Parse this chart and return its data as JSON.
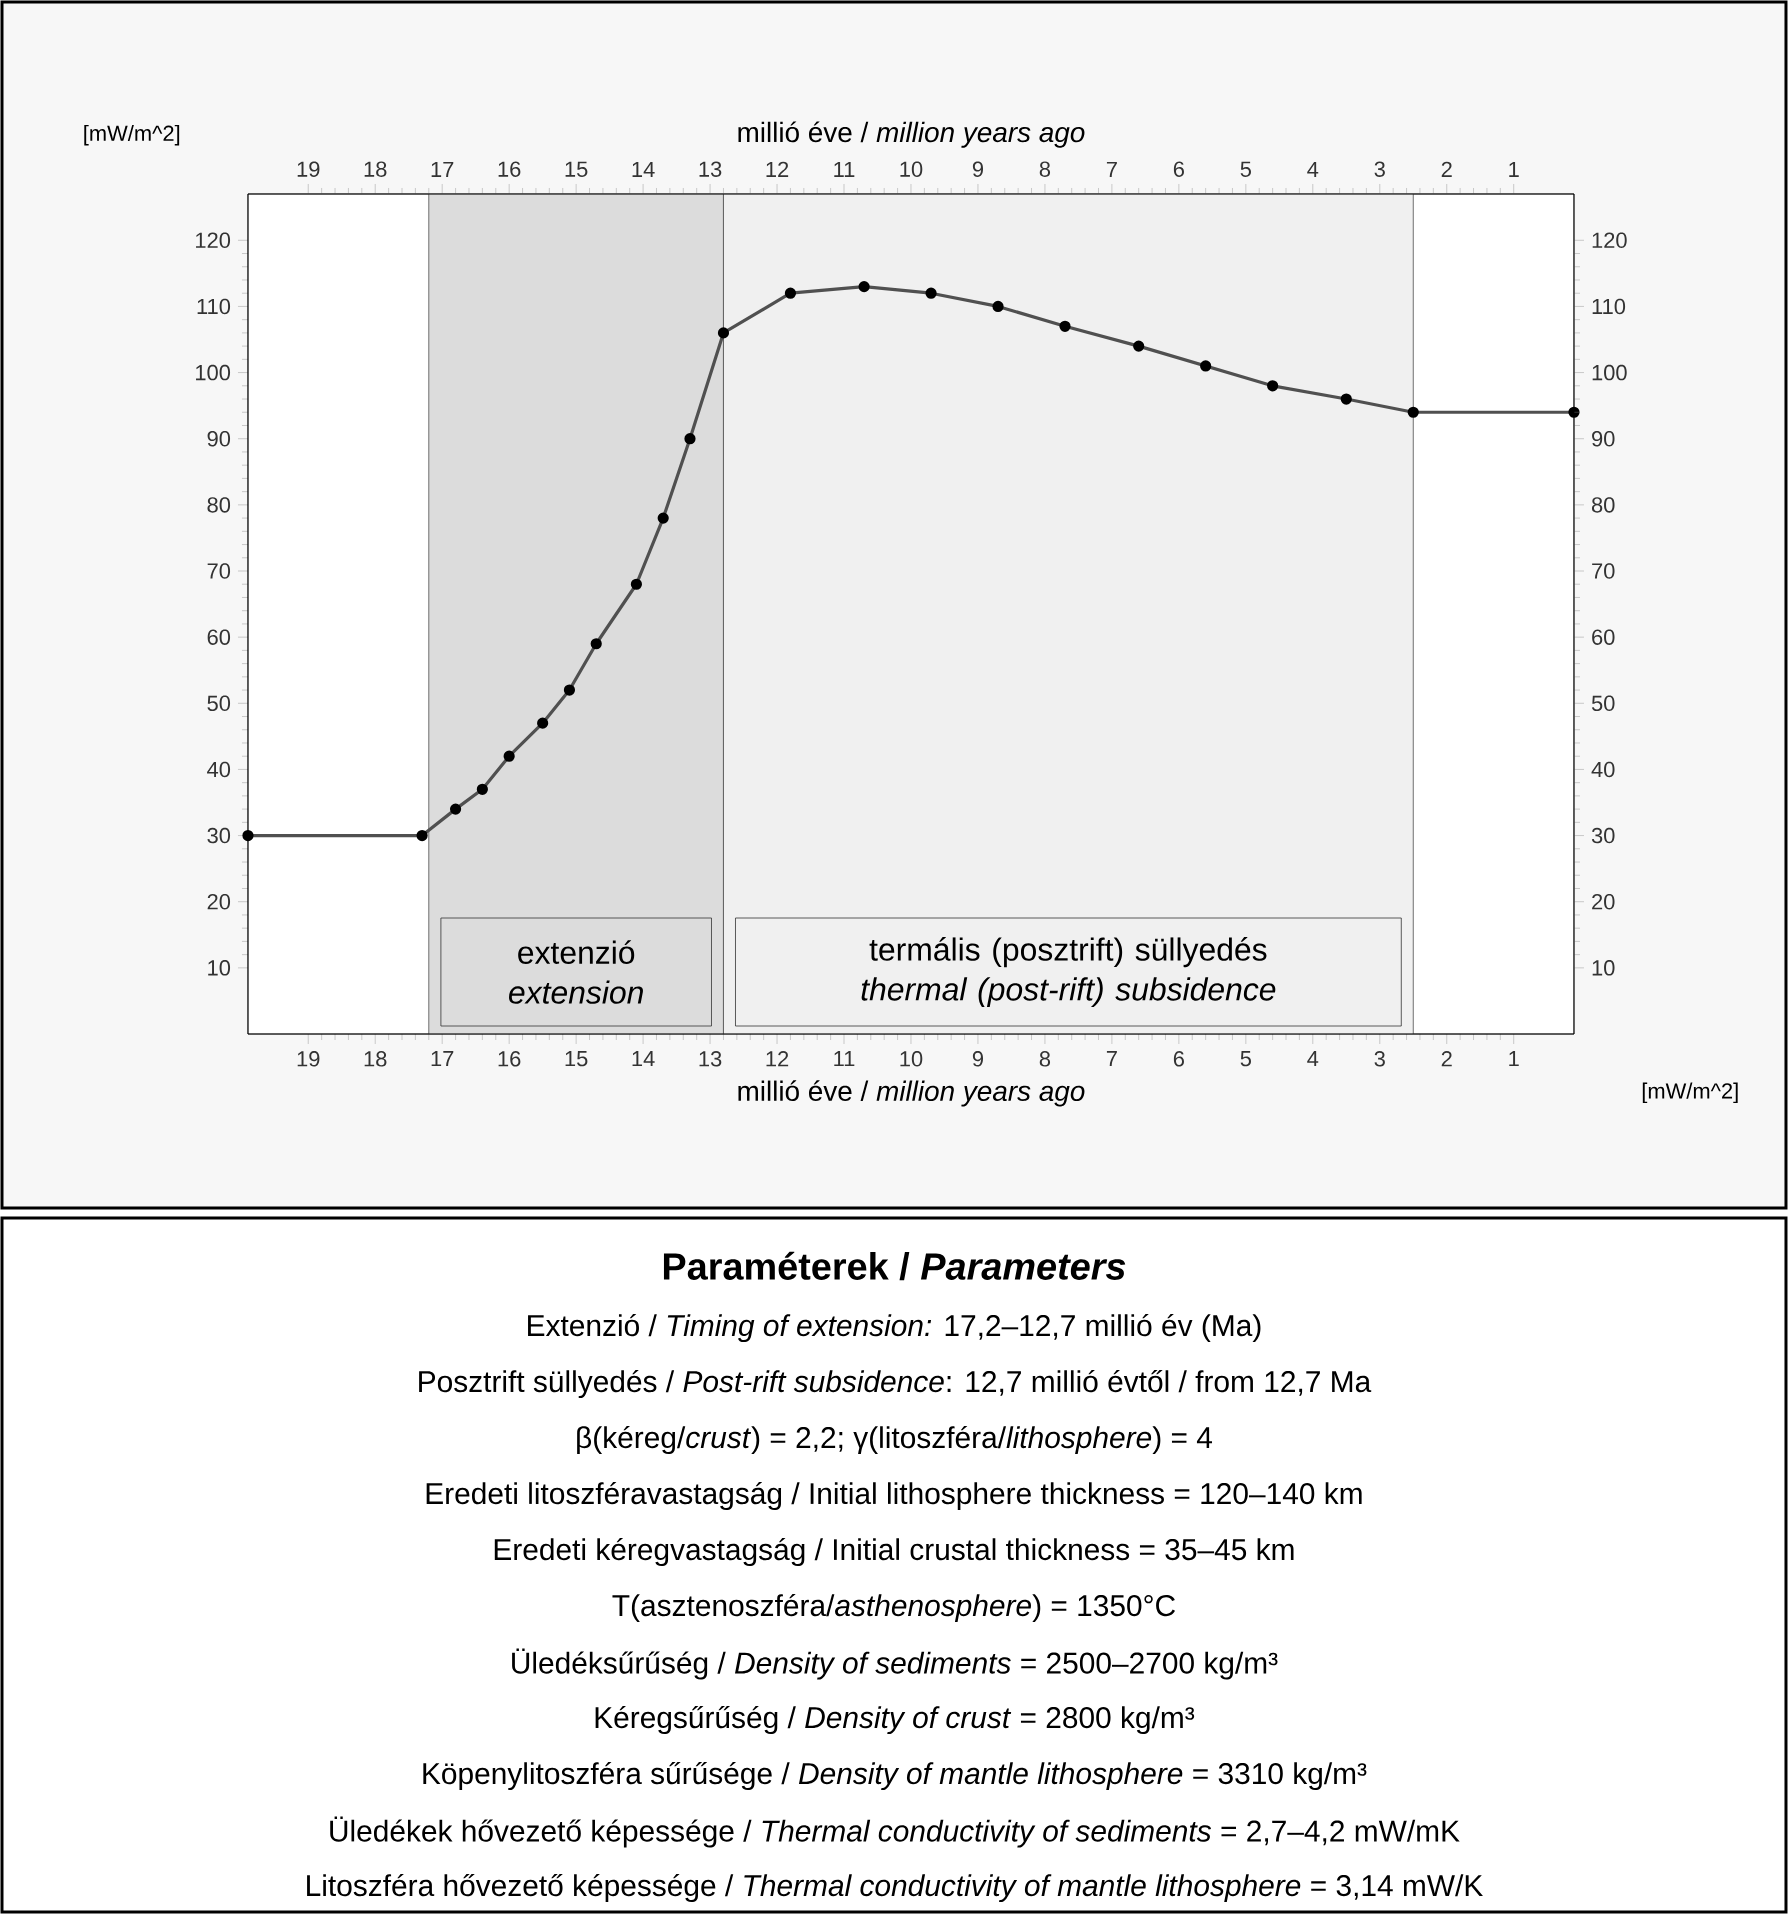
{
  "chart_data": {
    "type": "line",
    "title": "Paraméterek / *Parameters*",
    "xlabel": "millió éve / *million years ago*",
    "x2label": "millió éve / *million years ago*",
    "ylabel": "[mW/m^2]",
    "y2label": "[mW/m^2]",
    "xlim": [
      19.9,
      0.1
    ],
    "xticks": [
      19,
      18,
      17,
      16,
      15,
      14,
      13,
      12,
      11,
      10,
      9,
      8,
      7,
      6,
      5,
      4,
      3,
      2,
      1
    ],
    "x2lim": [
      19.9,
      0.1
    ],
    "x2ticks": [
      19,
      18,
      17,
      16,
      15,
      14,
      13,
      12,
      11,
      10,
      9,
      8,
      7,
      6,
      5,
      4,
      3,
      2,
      1
    ],
    "ylim": [
      0,
      127
    ],
    "yticks": [
      10,
      20,
      30,
      40,
      50,
      60,
      70,
      80,
      90,
      100,
      110,
      120
    ],
    "y2lim": [
      0,
      127
    ],
    "y2ticks": [
      10,
      20,
      30,
      40,
      50,
      60,
      70,
      80,
      90,
      100,
      110,
      120
    ],
    "marker": "circle",
    "line_style": "solid",
    "series": [
      {
        "color": "#505050",
        "x": [
          19.9,
          17.3,
          16.8,
          16.4,
          16.0,
          15.5,
          15.1,
          14.7,
          14.1,
          13.7,
          13.3,
          12.8,
          11.8,
          10.7,
          9.7,
          8.7,
          7.7,
          6.6,
          5.6,
          4.6,
          3.5,
          2.5,
          0.1
        ],
        "values": [
          30,
          30,
          34,
          37,
          42,
          47,
          52,
          59,
          68,
          78,
          90,
          106,
          112,
          113,
          112,
          110,
          107,
          104,
          101,
          98,
          96,
          94,
          94
        ]
      }
    ],
    "bands": [
      {
        "axis": "x",
        "from": 17.2,
        "to": 12.8,
        "label": "extenzió *extension*",
        "color": "#dcdcdc"
      },
      {
        "axis": "x",
        "from": 12.8,
        "to": 2.5,
        "label": "termális (posztrift) süllyedés *thermal (post-rift) subsidence*",
        "color": "#f0f0f0"
      }
    ],
    "annotations": [
      "Extenzió / *Timing of extension:* 17,2–12,7 millió év (Ma)",
      "Posztrift süllyedés / *Post-rift subsidence*: 12,7 millió évtől / from 12,7 Ma",
      "β(kéreg/*crust*) = 2,2; γ(litoszféra/*lithosphere*) = 4",
      "Eredeti litoszféravastagság / Initial lithosphere thickness = 120–140 km",
      "Eredeti kéregvastagság / Initial crustal thickness = 35–45 km",
      "T(asztenoszféra/*asthenosphere*) = 1350°C",
      "Üledéksűrűség / *Density of sediments* = 2500–2700 kg/m³",
      "Kéregsűrűség / *Density of crust* = 2800 kg/m³",
      "Köpenylitoszféra sűrűsége / *Density of mantle lithosphere* = 3310 kg/m³",
      "Üledékek hővezető képessége / *Thermal conductivity of sediments* = 2,7–4,2 mW/mK",
      "Litoszféra hővezető képessége / *Thermal conductivity of mantle lithosphere* = 3,14 mW/K"
    ]
  }
}
